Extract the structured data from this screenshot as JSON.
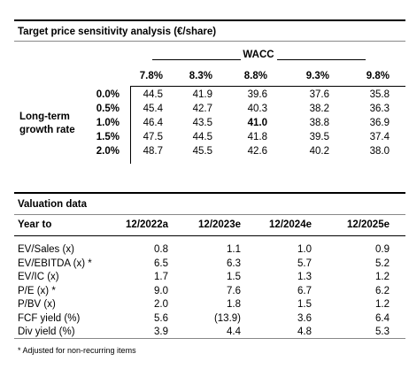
{
  "sensitivity": {
    "title": "Target price sensitivity analysis (€/share)",
    "column_group": "WACC",
    "columns": [
      "7.8%",
      "8.3%",
      "8.8%",
      "9.3%",
      "9.8%"
    ],
    "row_label": [
      "Long-term",
      "growth rate"
    ],
    "rows": [
      "0.0%",
      "0.5%",
      "1.0%",
      "1.5%",
      "2.0%"
    ],
    "values": [
      [
        "44.5",
        "41.9",
        "39.6",
        "37.6",
        "35.8"
      ],
      [
        "45.4",
        "42.7",
        "40.3",
        "38.2",
        "36.3"
      ],
      [
        "46.4",
        "43.5",
        "41.0",
        "38.8",
        "36.9"
      ],
      [
        "47.5",
        "44.5",
        "41.8",
        "39.5",
        "37.4"
      ],
      [
        "48.7",
        "45.5",
        "42.6",
        "40.2",
        "38.0"
      ]
    ],
    "bold_cell": {
      "row": 2,
      "col": 2
    }
  },
  "valuation": {
    "title": "Valuation data",
    "header": [
      "Year to",
      "12/2022a",
      "12/2023e",
      "12/2024e",
      "12/2025e"
    ],
    "rows": [
      [
        "EV/Sales (x)",
        "0.8",
        "1.1",
        "1.0",
        "0.9"
      ],
      [
        "EV/EBITDA (x) *",
        "6.5",
        "6.3",
        "5.7",
        "5.2"
      ],
      [
        "EV/IC (x)",
        "1.7",
        "1.5",
        "1.3",
        "1.2"
      ],
      [
        "P/E (x) *",
        "9.0",
        "7.6",
        "6.7",
        "6.2"
      ],
      [
        "P/BV (x)",
        "2.0",
        "1.8",
        "1.5",
        "1.2"
      ],
      [
        "FCF yield (%)",
        "5.6",
        "(13.9)",
        "3.6",
        "6.4"
      ],
      [
        "Div yield (%)",
        "3.9",
        "4.4",
        "4.8",
        "5.3"
      ]
    ],
    "footnote": "* Adjusted for non-recurring items"
  }
}
